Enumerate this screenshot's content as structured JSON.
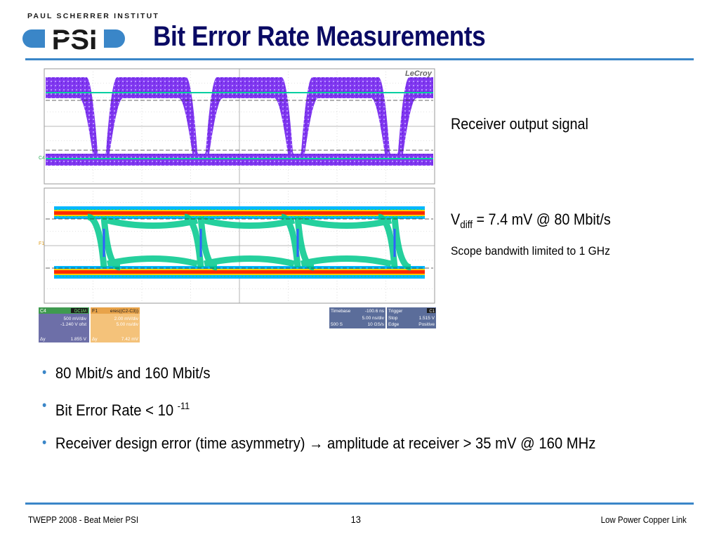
{
  "logo": {
    "institute_text": "PAUL SCHERRER INSTITUT",
    "mark_text": "PSI"
  },
  "title": "Bit Error Rate Measurements",
  "scope": {
    "brand": "LeCroy",
    "top_trace_marker": "C4",
    "bottom_trace_marker": "F1",
    "panels": {
      "c4": {
        "label": "C4",
        "badge": "DC1M",
        "vdiv": "500 mV/div",
        "offset": "-1.240 V ofst",
        "delta_label": "Δy",
        "delta_value": "1.855 V"
      },
      "f1": {
        "label": "F1",
        "expr": "eres((C2-C3))",
        "vdiv": "2.00 mV/div",
        "tdiv": "5.00 ns/div",
        "delta_label": "Δy",
        "delta_value": "7.42 mV"
      },
      "timebase": {
        "label": "Timebase",
        "value": "-100.6 ns",
        "tdiv": "5.00 ns/div",
        "samples": "500 S",
        "rate": "10 GS/s"
      },
      "trigger": {
        "label": "Trigger",
        "badge": "C1",
        "mode": "Stop",
        "level": "1.515 V",
        "type": "Edge",
        "slope": "Positive"
      }
    },
    "colors": {
      "top_trace": "#7a2df0",
      "bottom_hot": "#ff2a00",
      "panel_c4": "#6d6fa8",
      "panel_f1": "#e8a34a",
      "panel_right": "#5b6d9a"
    }
  },
  "side": {
    "receiver": "Receiver output signal",
    "vdiff_v": "V",
    "vdiff_sub": "diff",
    "vdiff_rest": " = 7.4 mV @ 80 Mbit/s",
    "bandwidth": "Scope bandwith limited to 1 GHz"
  },
  "bullets": {
    "b1": "80 Mbit/s and 160 Mbit/s",
    "b2_text": "Bit Error Rate < 10 ",
    "b2_exp": "-11",
    "b3": "Receiver design error (time asymmetry) → amplitude at receiver > 35 mV @ 160 MHz",
    "marker": "•"
  },
  "footer": {
    "left": "TWEPP 2008 - Beat Meier PSI",
    "page": "13",
    "right": "Low Power Copper Link"
  }
}
